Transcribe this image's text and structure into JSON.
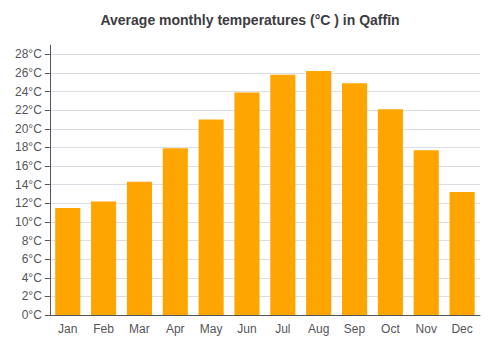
{
  "chart_data": {
    "type": "bar",
    "title": "Average monthly temperatures (°C ) in Qaffīn",
    "categories": [
      "Jan",
      "Feb",
      "Mar",
      "Apr",
      "May",
      "Jun",
      "Jul",
      "Aug",
      "Sep",
      "Oct",
      "Nov",
      "Dec"
    ],
    "values": [
      11.5,
      12.2,
      14.3,
      17.9,
      21.0,
      23.9,
      25.8,
      26.2,
      24.9,
      22.1,
      17.7,
      13.2
    ],
    "color": "#FFA500",
    "ylim": [
      0,
      29
    ],
    "yticks": [
      {
        "value": 0,
        "label": "0°C"
      },
      {
        "value": 2,
        "label": "2°C"
      },
      {
        "value": 4,
        "label": "4°C"
      },
      {
        "value": 6,
        "label": "6°C"
      },
      {
        "value": 8,
        "label": "8°C"
      },
      {
        "value": 10,
        "label": "10°C"
      },
      {
        "value": 12,
        "label": "12°C"
      },
      {
        "value": 14,
        "label": "14°C"
      },
      {
        "value": 16,
        "label": "16°C"
      },
      {
        "value": 18,
        "label": "18°C"
      },
      {
        "value": 20,
        "label": "20°C"
      },
      {
        "value": 22,
        "label": "22°C"
      },
      {
        "value": 24,
        "label": "24°C"
      },
      {
        "value": 26,
        "label": "26°C"
      },
      {
        "value": 28,
        "label": "28°C"
      }
    ],
    "grid": true
  }
}
